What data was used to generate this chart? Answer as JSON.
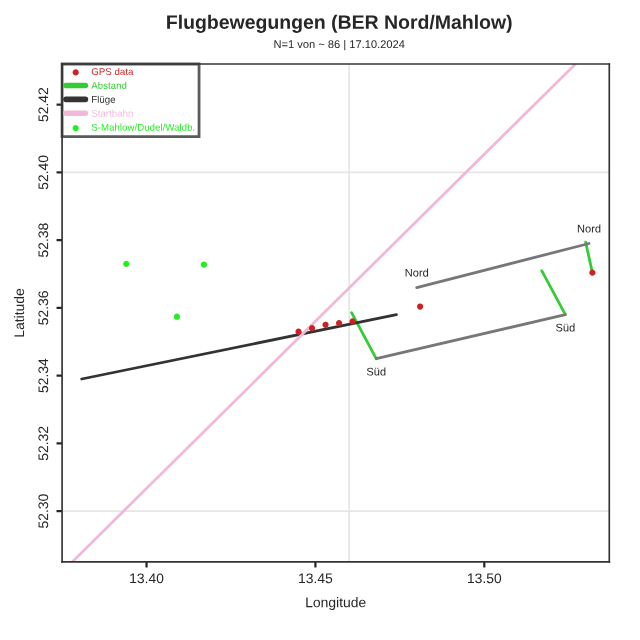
{
  "chart_data": {
    "type": "line",
    "title": "Flugbewegungen (BER Nord/Mahlow)",
    "subtitle": "N=1 von ~ 86 | 17.10.2024",
    "xlabel": "Longitude",
    "ylabel": "Latitude",
    "xlim": [
      13.375,
      13.537
    ],
    "ylim": [
      52.285,
      52.432
    ],
    "xticks": [
      {
        "value": 13.4,
        "label": "13.40"
      },
      {
        "value": 13.45,
        "label": "13.45"
      },
      {
        "value": 13.5,
        "label": "13.50"
      }
    ],
    "yticks": [
      {
        "value": 52.3,
        "label": "52.30"
      },
      {
        "value": 52.32,
        "label": "52.32"
      },
      {
        "value": 52.34,
        "label": "52.34"
      },
      {
        "value": 52.36,
        "label": "52.36"
      },
      {
        "value": 52.38,
        "label": "52.38"
      },
      {
        "value": 52.4,
        "label": "52.40"
      },
      {
        "value": 52.42,
        "label": "52.42"
      }
    ],
    "grid": false,
    "legend": "top left",
    "ref_lines": [
      {
        "axis": "x",
        "value": 13.46,
        "color": "#e6e6e6"
      },
      {
        "axis": "y",
        "value": 52.3,
        "color": "#e6e6e6"
      },
      {
        "axis": "y",
        "value": 52.4,
        "color": "#e6e6e6"
      }
    ],
    "series": [
      {
        "name": "GPS data",
        "type": "scatter",
        "color": "#cc2222",
        "x": [
          13.445,
          13.449,
          13.453,
          13.457,
          13.461,
          13.481,
          13.532
        ],
        "values": [
          52.353,
          52.354,
          52.355,
          52.3555,
          52.356,
          52.3604,
          52.3704
        ]
      },
      {
        "name": "Abstand",
        "color": "#33cc33",
        "x": [
          13.4607,
          13.468
        ],
        "values": [
          52.3586,
          52.345
        ]
      },
      {
        "color": "#33cc33",
        "x": [
          13.517,
          13.524
        ],
        "values": [
          52.371,
          52.358
        ]
      },
      {
        "color": "#33cc33",
        "x": [
          13.53,
          13.532
        ],
        "values": [
          52.3794,
          52.3704
        ]
      },
      {
        "name": "Flüge",
        "color": "#333333",
        "x": [
          13.3808,
          13.474
        ],
        "values": [
          52.339,
          52.358
        ]
      },
      {
        "name": "Startbahn",
        "color": "#f2b8d8",
        "x": [
          13.378,
          13.527
        ],
        "values": [
          52.285,
          52.432
        ]
      },
      {
        "color": "#777777",
        "x": [
          13.48,
          13.531
        ],
        "values": [
          52.366,
          52.379
        ]
      },
      {
        "color": "#777777",
        "x": [
          13.468,
          13.524
        ],
        "values": [
          52.345,
          52.358
        ]
      },
      {
        "name": "S-Mahlow/Dudel/Waldb.",
        "type": "scatter",
        "color": "#22ee22",
        "x": [
          13.394,
          13.417,
          13.409
        ],
        "values": [
          52.373,
          52.3728,
          52.3574
        ]
      }
    ],
    "annotations": [
      {
        "text": "Nord",
        "x": 13.48,
        "y": 52.366
      },
      {
        "text": "Nord",
        "x": 13.531,
        "y": 52.379
      },
      {
        "text": "Süd",
        "x": 13.468,
        "y": 52.345
      },
      {
        "text": "Süd",
        "x": 13.524,
        "y": 52.358
      }
    ]
  }
}
